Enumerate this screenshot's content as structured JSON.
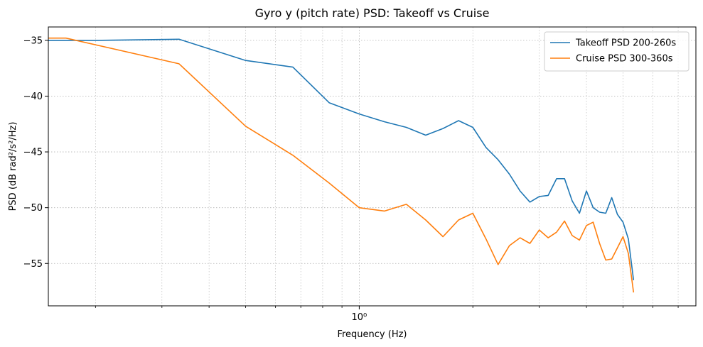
{
  "chart_data": {
    "type": "line",
    "title": "Gyro y (pitch rate) PSD: Takeoff vs Cruise",
    "xlabel": "Frequency (Hz)",
    "ylabel": "PSD (dB rad²/s²/Hz)",
    "xscale": "log",
    "xlim": [
      0.15,
      7.8
    ],
    "ylim": [
      -58.8,
      -33.8
    ],
    "grid": true,
    "legend_loc": "upper right",
    "yticks": [
      -35,
      -40,
      -45,
      -50,
      -55
    ],
    "ytick_labels": [
      "−35",
      "−40",
      "−45",
      "−50",
      "−55"
    ],
    "xticks_major": [
      1
    ],
    "xtick_labels_major": [
      "10⁰"
    ],
    "xticks_minor": [
      0.2,
      0.3,
      0.4,
      0.5,
      0.6,
      0.7,
      0.8,
      0.9,
      2,
      3,
      4,
      5,
      6,
      7
    ],
    "series": [
      {
        "name": "Takeoff PSD 200-260s",
        "color": "#1f77b4",
        "x": [
          0.15,
          0.2,
          0.333,
          0.5,
          0.667,
          0.833,
          1.0,
          1.167,
          1.333,
          1.5,
          1.667,
          1.833,
          2.0,
          2.167,
          2.333,
          2.5,
          2.667,
          2.833,
          3.0,
          3.167,
          3.333,
          3.5,
          3.667,
          3.833,
          4.0,
          4.167,
          4.333,
          4.5,
          4.667,
          4.833,
          5.0,
          5.167,
          5.333
        ],
        "y": [
          -35.0,
          -35.0,
          -34.9,
          -36.8,
          -37.4,
          -40.6,
          -41.6,
          -42.3,
          -42.8,
          -43.5,
          -42.9,
          -42.2,
          -42.8,
          -44.6,
          -45.7,
          -47.0,
          -48.5,
          -49.5,
          -49.0,
          -48.9,
          -47.4,
          -47.4,
          -49.4,
          -50.5,
          -48.5,
          -50.0,
          -50.4,
          -50.5,
          -49.1,
          -50.6,
          -51.3,
          -52.8,
          -56.5
        ]
      },
      {
        "name": "Cruise PSD 300-360s",
        "color": "#ff7f0e",
        "x": [
          0.15,
          0.167,
          0.333,
          0.5,
          0.667,
          0.833,
          1.0,
          1.167,
          1.333,
          1.5,
          1.667,
          1.833,
          2.0,
          2.167,
          2.333,
          2.5,
          2.667,
          2.833,
          3.0,
          3.167,
          3.333,
          3.5,
          3.667,
          3.833,
          4.0,
          4.167,
          4.333,
          4.5,
          4.667,
          4.833,
          5.0,
          5.167,
          5.333
        ],
        "y": [
          -34.8,
          -34.8,
          -37.1,
          -42.7,
          -45.3,
          -47.8,
          -50.0,
          -50.3,
          -49.7,
          -51.1,
          -52.6,
          -51.1,
          -50.5,
          -52.8,
          -55.1,
          -53.4,
          -52.7,
          -53.2,
          -52.0,
          -52.7,
          -52.2,
          -51.2,
          -52.5,
          -52.9,
          -51.6,
          -51.3,
          -53.2,
          -54.7,
          -54.6,
          -53.6,
          -52.6,
          -54.1,
          -57.6
        ]
      }
    ]
  }
}
